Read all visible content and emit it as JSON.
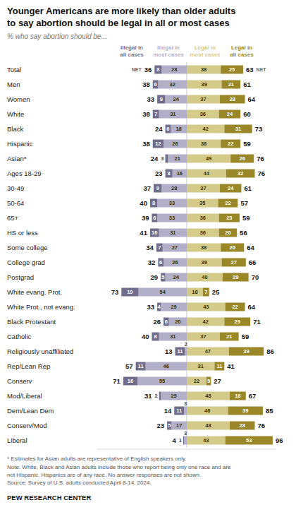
{
  "chart_data": {
    "type": "bar",
    "orientation": "horizontal",
    "stacked": true,
    "data_labels": true,
    "tick_labels": "y",
    "title": "Younger Americans are more likely than older adults\nto say abortion should be legal in all or most cases",
    "subtitle": "% who say abortion should be...",
    "categories": [
      "Total",
      "Men",
      "Women",
      "White",
      "Black",
      "Hispanic",
      "Asian*",
      "Ages 18-29",
      "30-49",
      "50-64",
      "65+",
      "HS or less",
      "Some college",
      "College grad",
      "Postgrad",
      "White evang. Prot.",
      "White Prot., not evang.",
      "Black Protestant",
      "Catholic",
      "Religiously unaffiliated",
      "Rep/Lean Rep",
      "Conserv",
      "Mod/Liberal",
      "Dem/Lean Dem",
      "Conserv/Mod",
      "Liberal"
    ],
    "series": [
      {
        "name": "Illegal in all cases",
        "color": "#706e8c",
        "values": [
          8,
          6,
          9,
          7,
          6,
          12,
          3,
          8,
          9,
          8,
          6,
          10,
          7,
          6,
          5,
          19,
          4,
          6,
          8,
          11,
          11,
          16,
          2,
          11,
          5,
          1
        ]
      },
      {
        "name": "Illegal in most cases",
        "color": "#b2b0c8",
        "values": [
          28,
          32,
          24,
          31,
          18,
          26,
          21,
          16,
          28,
          33,
          33,
          31,
          27,
          26,
          24,
          54,
          29,
          20,
          31,
          2,
          46,
          55,
          29,
          3,
          17,
          3
        ]
      },
      {
        "name": "Legal in most cases",
        "color": "#d4ca8a",
        "values": [
          38,
          39,
          37,
          36,
          42,
          38,
          49,
          44,
          37,
          35,
          36,
          36,
          38,
          39,
          40,
          18,
          43,
          42,
          37,
          47,
          31,
          22,
          48,
          46,
          48,
          43
        ]
      },
      {
        "name": "Legal in all cases",
        "color": "#9a8828",
        "values": [
          25,
          21,
          28,
          24,
          31,
          22,
          26,
          32,
          24,
          22,
          23,
          20,
          26,
          27,
          29,
          7,
          22,
          29,
          21,
          39,
          11,
          5,
          18,
          39,
          28,
          53
        ]
      }
    ],
    "net_label": "NET",
    "net_left": [
      36,
      38,
      33,
      38,
      24,
      38,
      24,
      23,
      37,
      40,
      39,
      41,
      34,
      32,
      29,
      73,
      33,
      26,
      40,
      13,
      57,
      71,
      31,
      14,
      23,
      4
    ],
    "net_right": [
      63,
      61,
      64,
      60,
      73,
      59,
      76,
      76,
      61,
      57,
      59,
      56,
      64,
      66,
      70,
      25,
      64,
      71,
      59,
      86,
      41,
      27,
      67,
      85,
      76,
      96
    ],
    "xlim": [
      -100,
      100
    ],
    "notes": [
      "* Estimates for Asian adults are representative of English speakers only.",
      "Note: White, Black and Asian adults include those who report being only one race and are\nnot Hispanic. Hispanics are of any race. No answer responses are not shown.\nSource: Survey of U.S. adults conducted April 8-14, 2024."
    ],
    "source": "PEW RESEARCH CENTER"
  }
}
